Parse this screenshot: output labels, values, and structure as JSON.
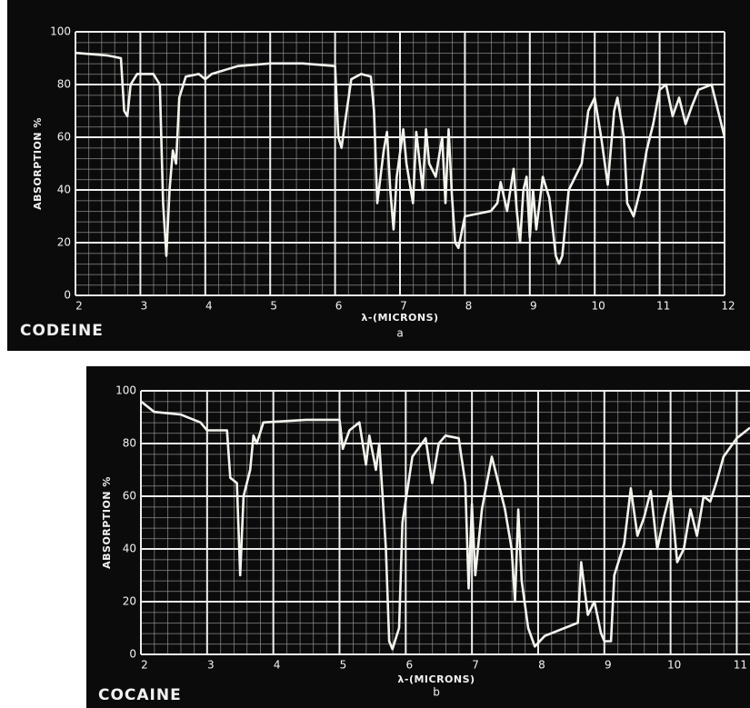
{
  "chart_data": [
    {
      "type": "line",
      "title": "CODEINE",
      "caption": "a",
      "xlabel": "λ-(MICRONS)",
      "ylabel": "ABSORPTION %",
      "xlim": [
        2,
        12
      ],
      "xticks": [
        2,
        3,
        4,
        5,
        6,
        7,
        8,
        9,
        10,
        11,
        12
      ],
      "ylim": [
        0,
        100
      ],
      "yticks": [
        0,
        20,
        40,
        60,
        80,
        100
      ],
      "grid": true,
      "color": "#f4f4ee",
      "x": [
        2.0,
        2.5,
        2.7,
        2.75,
        2.8,
        2.85,
        2.95,
        3.2,
        3.3,
        3.35,
        3.4,
        3.45,
        3.5,
        3.55,
        3.6,
        3.7,
        3.9,
        4.0,
        4.1,
        4.5,
        5.0,
        5.5,
        6.0,
        6.05,
        6.1,
        6.15,
        6.25,
        6.4,
        6.55,
        6.6,
        6.65,
        6.75,
        6.8,
        6.85,
        6.9,
        6.95,
        7.05,
        7.1,
        7.2,
        7.25,
        7.35,
        7.4,
        7.45,
        7.55,
        7.65,
        7.7,
        7.75,
        7.8,
        7.85,
        7.9,
        8.0,
        8.2,
        8.4,
        8.5,
        8.55,
        8.65,
        8.75,
        8.8,
        8.85,
        8.9,
        8.95,
        9.0,
        9.05,
        9.1,
        9.2,
        9.3,
        9.4,
        9.45,
        9.5,
        9.6,
        9.7,
        9.8,
        9.9,
        10.0,
        10.1,
        10.2,
        10.3,
        10.35,
        10.45,
        10.5,
        10.6,
        10.7,
        10.8,
        10.9,
        11.0,
        11.1,
        11.2,
        11.3,
        11.4,
        11.5,
        11.6,
        11.8,
        11.9,
        12.0
      ],
      "values": [
        92,
        91,
        90,
        70,
        68,
        80,
        84,
        84,
        80,
        35,
        15,
        40,
        55,
        50,
        75,
        83,
        84,
        82,
        84,
        87,
        88,
        88,
        87,
        60,
        56,
        65,
        82,
        84,
        83,
        70,
        35,
        55,
        62,
        40,
        25,
        45,
        63,
        50,
        35,
        62,
        40,
        63,
        50,
        45,
        60,
        35,
        63,
        38,
        20,
        18,
        30,
        31,
        32,
        35,
        43,
        32,
        48,
        32,
        20,
        40,
        45,
        22,
        40,
        25,
        45,
        37,
        15,
        12,
        15,
        40,
        45,
        50,
        70,
        75,
        60,
        42,
        70,
        75,
        60,
        35,
        30,
        40,
        55,
        65,
        78,
        80,
        68,
        75,
        65,
        72,
        78,
        80,
        70,
        60
      ]
    },
    {
      "type": "line",
      "title": "COCAINE",
      "caption": "b",
      "xlabel": "λ-(MICRONS)",
      "ylabel": "ABSORPTION %",
      "xlim": [
        2,
        11.2
      ],
      "xticks": [
        2,
        3,
        4,
        5,
        6,
        7,
        8,
        9,
        10,
        11
      ],
      "ylim": [
        0,
        100
      ],
      "yticks": [
        0,
        20,
        40,
        60,
        80,
        100
      ],
      "grid": true,
      "color": "#f4f4ee",
      "x": [
        2.0,
        2.2,
        2.6,
        2.9,
        3.0,
        3.3,
        3.35,
        3.45,
        3.5,
        3.55,
        3.65,
        3.7,
        3.75,
        3.85,
        4.5,
        5.0,
        5.05,
        5.15,
        5.3,
        5.4,
        5.45,
        5.55,
        5.6,
        5.7,
        5.75,
        5.8,
        5.9,
        5.95,
        6.1,
        6.3,
        6.4,
        6.5,
        6.6,
        6.8,
        6.9,
        6.95,
        7.0,
        7.05,
        7.15,
        7.3,
        7.4,
        7.45,
        7.5,
        7.6,
        7.65,
        7.7,
        7.75,
        7.85,
        7.95,
        8.1,
        8.4,
        8.6,
        8.65,
        8.75,
        8.85,
        8.95,
        9.0,
        9.1,
        9.15,
        9.3,
        9.4,
        9.5,
        9.6,
        9.7,
        9.8,
        9.9,
        10.0,
        10.1,
        10.2,
        10.3,
        10.4,
        10.5,
        10.6,
        10.7,
        10.8,
        11.0,
        11.2
      ],
      "values": [
        96,
        92,
        91,
        88,
        85,
        85,
        67,
        65,
        30,
        60,
        70,
        83,
        80,
        88,
        89,
        89,
        78,
        85,
        88,
        72,
        83,
        70,
        80,
        40,
        5,
        2,
        10,
        50,
        75,
        82,
        65,
        80,
        83,
        82,
        65,
        25,
        57,
        30,
        55,
        75,
        65,
        60,
        55,
        40,
        20,
        55,
        28,
        10,
        3,
        7,
        10,
        12,
        35,
        15,
        20,
        8,
        5,
        5,
        30,
        42,
        63,
        45,
        52,
        62,
        40,
        52,
        62,
        35,
        40,
        55,
        45,
        60,
        58,
        66,
        75,
        82,
        86
      ]
    }
  ]
}
